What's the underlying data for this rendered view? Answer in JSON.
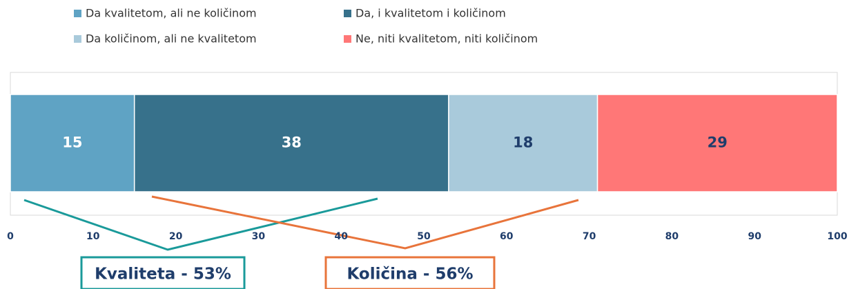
{
  "chart_data": {
    "type": "stacked-bar-horizontal",
    "series": [
      {
        "name": "Da kvalitetom, ali ne količinom",
        "color": "#5fa3c4",
        "label_color": "#ffffff",
        "values": [
          15
        ]
      },
      {
        "name": "Da, i kvalitetom i količinom",
        "color": "#37718b",
        "label_color": "#ffffff",
        "values": [
          38
        ]
      },
      {
        "name": "Da količinom, ali ne kvalitetom",
        "color": "#a9cadb",
        "label_color": "#1f3d6b",
        "values": [
          18
        ]
      },
      {
        "name": "Ne, niti kvalitetom, niti količinom",
        "color": "#ff7777",
        "label_color": "#1f3d6b",
        "values": [
          29
        ]
      }
    ],
    "xlim": [
      0,
      100
    ],
    "xticks": [
      0,
      10,
      20,
      30,
      40,
      50,
      60,
      70,
      80,
      90,
      100
    ],
    "annotations": [
      {
        "text": "Kvaliteta - 53%",
        "color": "#1a9a9a"
      },
      {
        "text": "Količina - 56%",
        "color": "#e8743b"
      }
    ]
  }
}
